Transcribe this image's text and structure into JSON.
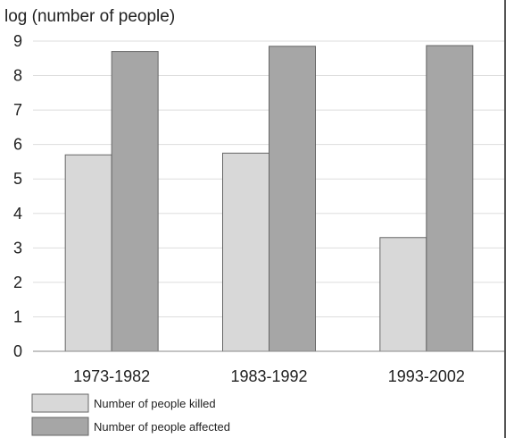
{
  "chart_data": {
    "type": "bar",
    "title": "",
    "ylabel": "log (number of people)",
    "xlabel": "",
    "ylim": [
      0,
      9
    ],
    "yticks": [
      0,
      1,
      2,
      3,
      4,
      5,
      6,
      7,
      8,
      9
    ],
    "categories": [
      "1973-1982",
      "1983-1992",
      "1993-2002"
    ],
    "series": [
      {
        "name": "Number of people killed",
        "values": [
          5.7,
          5.75,
          3.3
        ],
        "color": "#d8d8d8"
      },
      {
        "name": "Number of people affected",
        "values": [
          8.7,
          8.85,
          8.87
        ],
        "color": "#a6a6a6"
      }
    ],
    "grid": true,
    "legend_position": "bottom-left"
  }
}
